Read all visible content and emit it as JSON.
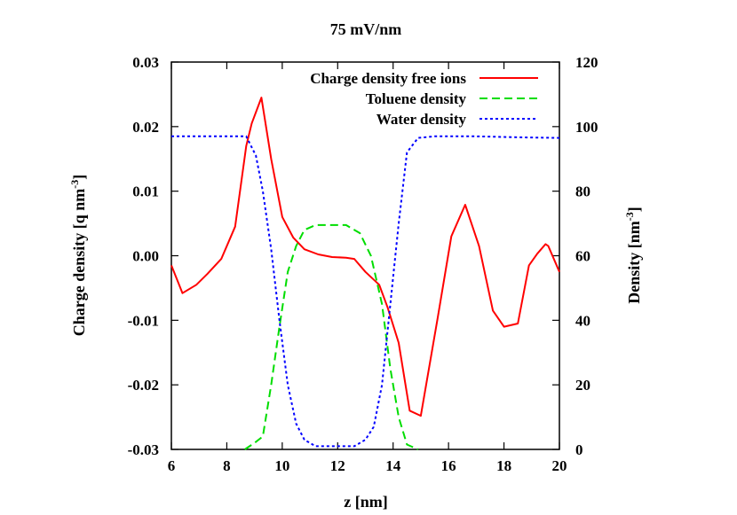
{
  "chart_data": {
    "type": "line",
    "title": "75 mV/nm",
    "xlabel": "z [nm]",
    "ylabel": "Charge density [q nm",
    "ylabel_sup": "-3",
    "ylabel_tail": "]",
    "y2label": "Density [nm",
    "y2label_sup": "-3",
    "y2label_tail": "]",
    "xlim": [
      6,
      20
    ],
    "ylim": [
      -0.03,
      0.03
    ],
    "y2lim": [
      0,
      120
    ],
    "x_ticks": [
      "6",
      "8",
      "10",
      "12",
      "14",
      "16",
      "18",
      "20"
    ],
    "y_ticks": [
      "-0.03",
      "-0.02",
      "-0.01",
      "0.00",
      "0.01",
      "0.02",
      "0.03"
    ],
    "y2_ticks": [
      "0",
      "20",
      "40",
      "60",
      "80",
      "100",
      "120"
    ],
    "grid": false,
    "legend_position": "top-right",
    "series": [
      {
        "name": "Charge density free ions",
        "axis": "left",
        "color": "#ff0000",
        "dash": "solid",
        "x": [
          6.0,
          6.4,
          6.9,
          7.3,
          7.8,
          8.3,
          8.7,
          8.9,
          9.25,
          9.6,
          10.0,
          10.4,
          10.8,
          11.3,
          11.8,
          12.3,
          12.6,
          13.0,
          13.5,
          13.8,
          14.2,
          14.6,
          15.0,
          15.6,
          16.1,
          16.6,
          17.1,
          17.6,
          18.0,
          18.5,
          18.9,
          19.2,
          19.5,
          19.6,
          20.0
        ],
        "y": [
          -0.0015,
          -0.0058,
          -0.0045,
          -0.0028,
          -0.0005,
          0.0045,
          0.017,
          0.0205,
          0.0245,
          0.015,
          0.006,
          0.0028,
          0.001,
          0.0002,
          -0.0002,
          -0.0003,
          -0.0005,
          -0.0025,
          -0.0045,
          -0.008,
          -0.0135,
          -0.024,
          -0.0248,
          -0.0098,
          0.003,
          0.0079,
          0.0015,
          -0.0085,
          -0.011,
          -0.0105,
          -0.0015,
          0.0003,
          0.0018,
          0.0015,
          -0.0025
        ]
      },
      {
        "name": "Toluene density",
        "axis": "right",
        "color": "#00dd00",
        "dash": "long",
        "x": [
          8.65,
          9.0,
          9.3,
          9.6,
          9.9,
          10.2,
          10.5,
          10.8,
          11.2,
          11.8,
          12.3,
          12.8,
          13.2,
          13.6,
          13.9,
          14.2,
          14.5,
          14.9
        ],
        "y": [
          0,
          2,
          4,
          20,
          38,
          55,
          63,
          68,
          69.5,
          69.5,
          69.5,
          67,
          60,
          45,
          25,
          10,
          1.5,
          0
        ]
      },
      {
        "name": "Water density",
        "axis": "right",
        "color": "#0000ff",
        "dash": "short",
        "x": [
          6.0,
          7.0,
          8.0,
          8.7,
          9.05,
          9.3,
          9.6,
          9.9,
          10.2,
          10.5,
          10.8,
          11.2,
          12.0,
          12.6,
          13.0,
          13.3,
          13.6,
          13.9,
          14.2,
          14.5,
          14.9,
          15.5,
          17.0,
          18.5,
          20.0
        ],
        "y": [
          97,
          97,
          97,
          97,
          91,
          80,
          62,
          40,
          20,
          8,
          3,
          1,
          1,
          1,
          3,
          7,
          20,
          45,
          70,
          92,
          96.5,
          97,
          97,
          96.7,
          96.5
        ]
      }
    ]
  }
}
